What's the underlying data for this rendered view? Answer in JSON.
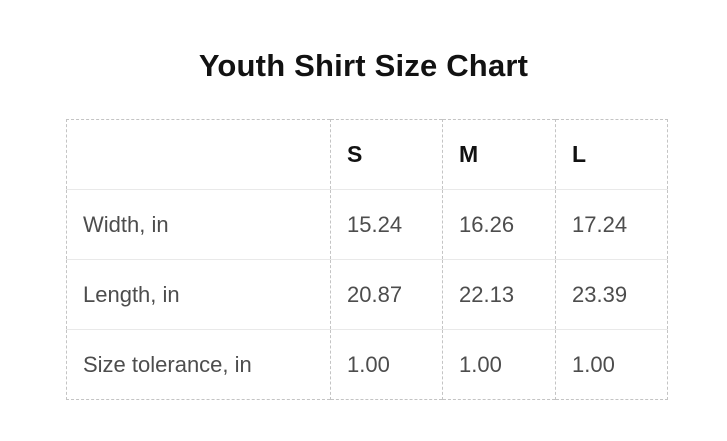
{
  "chart_data": {
    "type": "table",
    "title": "Youth Shirt Size Chart",
    "columns": [
      "",
      "S",
      "M",
      "L"
    ],
    "rows": [
      {
        "label": "Width, in",
        "values": [
          "15.24",
          "16.26",
          "17.24"
        ]
      },
      {
        "label": "Length, in",
        "values": [
          "20.87",
          "22.13",
          "23.39"
        ]
      },
      {
        "label": "Size tolerance, in",
        "values": [
          "1.00",
          "1.00",
          "1.00"
        ]
      }
    ],
    "layout": {
      "legend": "none",
      "grid": "dashed-outer-and-columns, solid-row-separators"
    },
    "colors": {
      "background": "#ffffff",
      "text_primary": "#121212",
      "text_secondary": "#4d4d4d",
      "border_dashed": "#c4c4c4",
      "border_solid": "#e9e9e9"
    }
  }
}
